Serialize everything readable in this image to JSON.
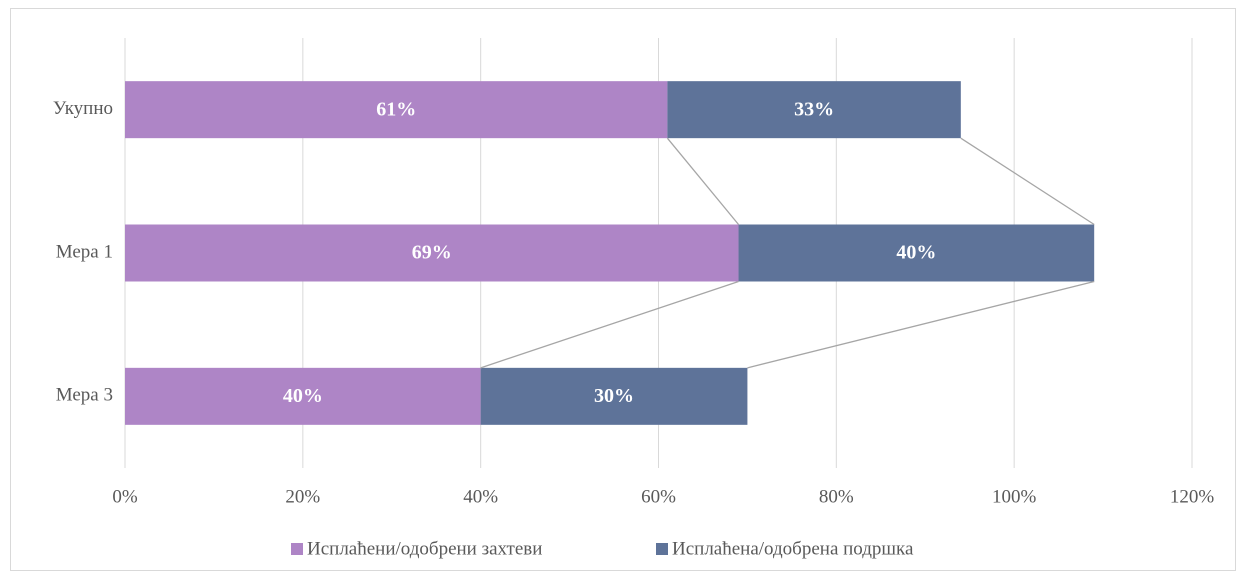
{
  "chart_data": {
    "type": "bar",
    "orientation": "horizontal",
    "stacked": true,
    "categories": [
      "Укупно",
      "Мера 1",
      "Мера 3"
    ],
    "series": [
      {
        "name": "Исплаћени/одобрени захтеви",
        "color": "#ae85c6",
        "values": [
          61,
          69,
          40
        ],
        "value_labels": [
          "61%",
          "69%",
          "40%"
        ]
      },
      {
        "name": "Исплаћена/одобрена подршка",
        "color": "#5e7399",
        "values": [
          33,
          40,
          30
        ],
        "value_labels": [
          "33%",
          "40%",
          "30%"
        ]
      }
    ],
    "xlim": [
      0,
      120
    ],
    "xticks": [
      {
        "value": 0,
        "label": "0%"
      },
      {
        "value": 20,
        "label": "20%"
      },
      {
        "value": 40,
        "label": "40%"
      },
      {
        "value": 60,
        "label": "60%"
      },
      {
        "value": 80,
        "label": "80%"
      },
      {
        "value": 100,
        "label": "100%"
      },
      {
        "value": 120,
        "label": "120%"
      }
    ],
    "grid": true,
    "legend": "bottom",
    "series_lines": true
  }
}
